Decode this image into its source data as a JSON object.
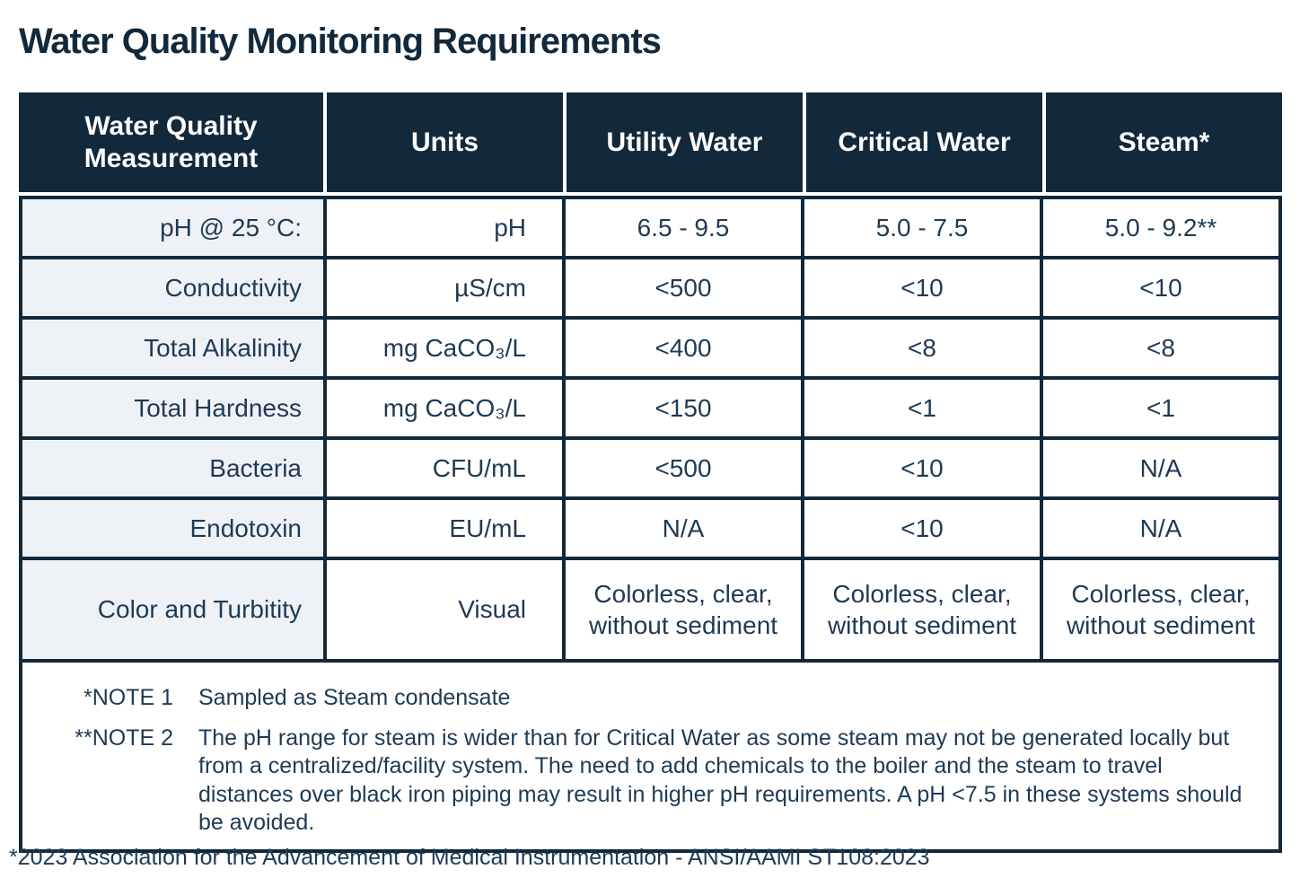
{
  "page": {
    "title": "Water Quality Monitoring Requirements",
    "footer": "*2023 Association for the Advancement of Medical Instrumentation - ANSI/AAMI ST108:2023"
  },
  "colors": {
    "navy": "#12293c",
    "row_label_background": "#eef1f6",
    "body_text": "#1e3a54",
    "header_text": "#ffffff"
  },
  "table": {
    "headers": [
      "Water Quality Measurement",
      "Units",
      "Utility Water",
      "Critical Water",
      "Steam*"
    ],
    "rows": [
      {
        "measurement": "pH @ 25 °C:",
        "units": "pH",
        "utility": "6.5 - 9.5",
        "critical": "5.0 - 7.5",
        "steam": "5.0 - 9.2**"
      },
      {
        "measurement": "Conductivity",
        "units": "µS/cm",
        "utility": "<500",
        "critical": "<10",
        "steam": "<10"
      },
      {
        "measurement": "Total Alkalinity",
        "units": "mg CaCO₃/L",
        "utility": "<400",
        "critical": "<8",
        "steam": "<8"
      },
      {
        "measurement": "Total Hardness",
        "units": "mg CaCO₃/L",
        "utility": "<150",
        "critical": "<1",
        "steam": "<1"
      },
      {
        "measurement": "Bacteria",
        "units": "CFU/mL",
        "utility": "<500",
        "critical": "<10",
        "steam": "N/A"
      },
      {
        "measurement": "Endotoxin",
        "units": "EU/mL",
        "utility": "N/A",
        "critical": "<10",
        "steam": "N/A"
      },
      {
        "measurement": "Color and Turbitity",
        "units": "Visual",
        "utility": "Colorless, clear, without sediment",
        "critical": "Colorless, clear, without sediment",
        "steam": "Colorless, clear, without sediment"
      }
    ],
    "notes": [
      {
        "label": "*NOTE 1",
        "text": "Sampled as Steam condensate"
      },
      {
        "label": "**NOTE 2",
        "text": "The pH range for steam is wider than for Critical Water as some steam may not be generated locally but from a centralized/facility system. The need to add chemicals to the boiler and the steam to travel distances over black iron piping may result in higher pH requirements. A pH <7.5 in these systems should be avoided."
      }
    ]
  }
}
